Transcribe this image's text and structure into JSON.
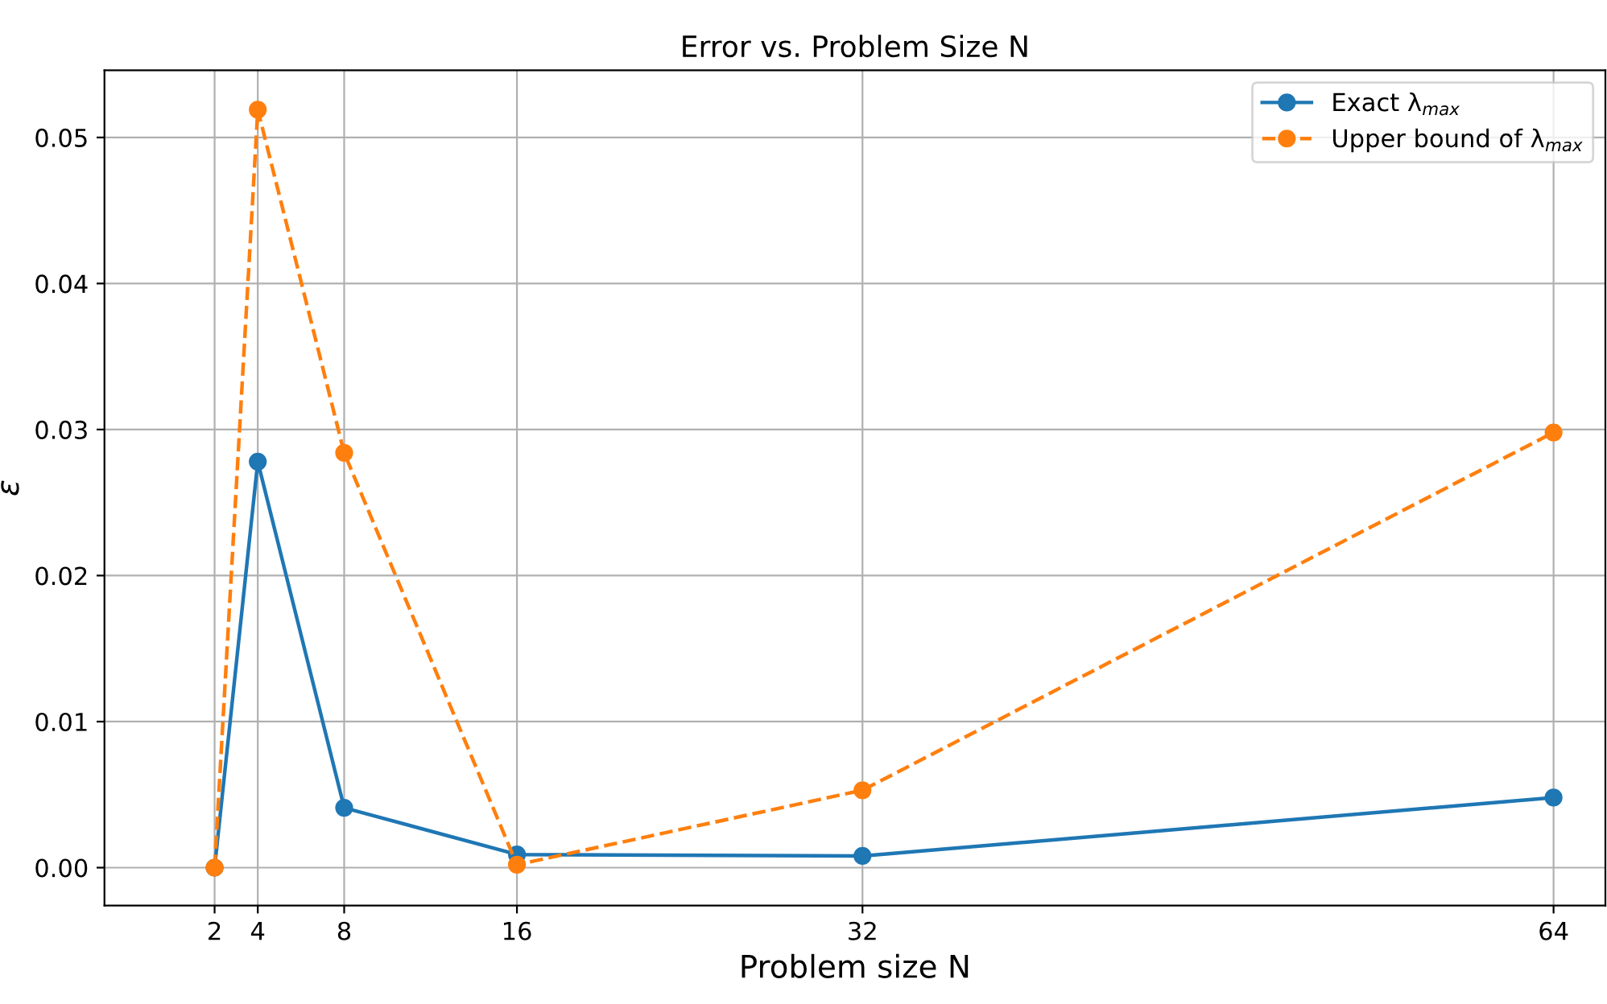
{
  "chart_data": {
    "type": "line",
    "title": "Error vs. Problem Size N",
    "xlabel": "Problem size N",
    "ylabel": "ε",
    "x": [
      2,
      4,
      8,
      16,
      32,
      64
    ],
    "series": [
      {
        "name": "Exact λ$_{max}$",
        "color": "#1f77b4",
        "line_style": "solid",
        "values": [
          0.0,
          0.0278,
          0.0041,
          0.0009,
          0.0008,
          0.0048
        ]
      },
      {
        "name": "Upper bound of λ$_{max}$",
        "color": "#ff7f0e",
        "line_style": "dashed",
        "values": [
          0.0,
          0.0519,
          0.0284,
          0.0002,
          0.0053,
          0.0298
        ]
      }
    ],
    "xlim": [
      -3.1,
      66.4
    ],
    "xticks": [
      2,
      4,
      8,
      16,
      32,
      64
    ],
    "ylim": [
      -0.0026,
      0.0546
    ],
    "yticks": [
      {
        "value": 0,
        "label": "0.00"
      },
      {
        "value": 0.01,
        "label": "0.01"
      },
      {
        "value": 0.02,
        "label": "0.02"
      },
      {
        "value": 0.03,
        "label": "0.03"
      },
      {
        "value": 0.04,
        "label": "0.04"
      },
      {
        "value": 0.05,
        "label": "0.05"
      }
    ],
    "grid": true,
    "legend": "top right",
    "marker": "circle"
  }
}
